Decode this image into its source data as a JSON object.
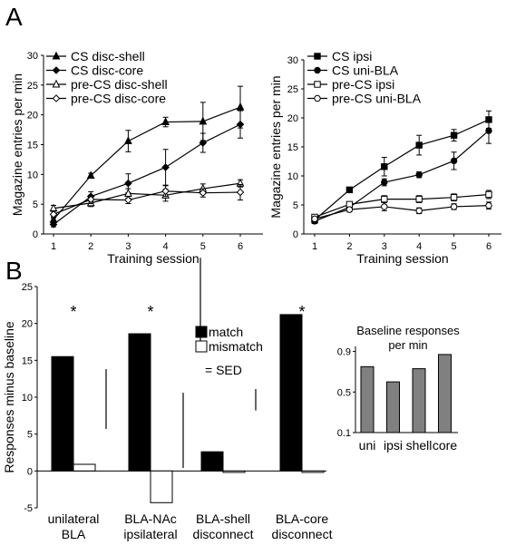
{
  "panel_labels": {
    "a": "A",
    "b": "B"
  },
  "chart_data": [
    {
      "type": "line",
      "panel": "A-left",
      "xlabel": "Training session",
      "ylabel": "Magazine entries per min",
      "x": [
        1,
        2,
        3,
        4,
        5,
        6
      ],
      "xticks": [
        "1",
        "2",
        "3",
        "4",
        "5",
        "6"
      ],
      "ylim": [
        0,
        30
      ],
      "yticks": [
        "0",
        "5",
        "10",
        "15",
        "20",
        "25",
        "30"
      ],
      "legend_position": "top-left",
      "series": [
        {
          "name": "CS disc-shell",
          "marker": "filled-triangle",
          "values": [
            2.4,
            9.8,
            15.6,
            18.8,
            18.9,
            21.3
          ],
          "errors": [
            0.5,
            0.4,
            1.8,
            0.8,
            3.2,
            3.5
          ]
        },
        {
          "name": "CS disc-core",
          "marker": "filled-diamond",
          "values": [
            1.6,
            6.3,
            8.5,
            11.2,
            15.3,
            18.4
          ],
          "errors": [
            0.4,
            0.8,
            1.6,
            3.0,
            1.6,
            2.3
          ]
        },
        {
          "name": "pre-CS disc-shell",
          "marker": "open-triangle",
          "values": [
            4.3,
            5.2,
            6.8,
            6.5,
            7.6,
            8.5
          ],
          "errors": [
            0.5,
            0.6,
            0.8,
            1.0,
            0.8,
            0.6
          ]
        },
        {
          "name": "pre-CS disc-core",
          "marker": "open-diamond",
          "values": [
            3.3,
            5.8,
            5.7,
            7.2,
            6.9,
            7.0
          ],
          "errors": [
            0.6,
            0.7,
            0.6,
            0.9,
            0.7,
            1.3
          ]
        }
      ]
    },
    {
      "type": "line",
      "panel": "A-right",
      "xlabel": "Training session",
      "ylabel": "Magazine entries per min",
      "x": [
        1,
        2,
        3,
        4,
        5,
        6
      ],
      "xticks": [
        "1",
        "2",
        "3",
        "4",
        "5",
        "6"
      ],
      "ylim": [
        0,
        30
      ],
      "yticks": [
        "0",
        "5",
        "10",
        "15",
        "20",
        "25",
        "30"
      ],
      "legend_position": "top-left",
      "series": [
        {
          "name": "CS ipsi",
          "marker": "filled-square",
          "values": [
            2.4,
            7.6,
            11.6,
            15.3,
            17.0,
            19.7
          ],
          "errors": [
            0.4,
            0.3,
            1.6,
            1.7,
            1.0,
            1.5
          ]
        },
        {
          "name": "CS uni-BLA",
          "marker": "filled-circle",
          "values": [
            2.2,
            4.6,
            8.9,
            10.2,
            12.6,
            17.8
          ],
          "errors": [
            0.4,
            0.5,
            0.6,
            0.5,
            1.5,
            2.2
          ]
        },
        {
          "name": "pre-CS ipsi",
          "marker": "open-square",
          "values": [
            2.9,
            5.1,
            6.0,
            6.0,
            6.3,
            6.8
          ],
          "errors": [
            0.3,
            0.4,
            0.6,
            0.6,
            0.6,
            0.7
          ]
        },
        {
          "name": "pre-CS uni-BLA",
          "marker": "open-circle",
          "values": [
            2.6,
            4.2,
            4.7,
            4.0,
            4.7,
            4.9
          ],
          "errors": [
            0.3,
            0.4,
            0.7,
            0.5,
            0.5,
            0.6
          ]
        }
      ]
    },
    {
      "type": "bar",
      "panel": "B-main",
      "ylabel": "Responses minus baseline",
      "categories": [
        "unilateral\nBLA",
        "BLA-NAc\nipsilateral",
        "BLA-shell\ndisconnect",
        "BLA-core\ndisconnect"
      ],
      "ylim": [
        -5,
        25
      ],
      "yticks": [
        "-5",
        "0",
        "5",
        "10",
        "15",
        "20",
        "25"
      ],
      "series": [
        {
          "name": "match",
          "color": "#000000",
          "values": [
            15.5,
            18.6,
            2.6,
            21.2
          ]
        },
        {
          "name": "mismatch",
          "color": "#ffffff",
          "values": [
            0.9,
            -4.3,
            -0.2,
            -0.2
          ]
        }
      ],
      "significance": [
        "*",
        "*",
        "",
        "*"
      ],
      "sed_label": "= SED",
      "sed_bars": [
        {
          "group": 0,
          "low": 5.7,
          "high": 13.8
        },
        {
          "group": 1,
          "low": 0.4,
          "high": 10.6
        },
        {
          "group": 2,
          "low": 8.2,
          "high": 11.1
        },
        {
          "legend": true,
          "low": 17.1,
          "high": 28.9
        }
      ]
    },
    {
      "type": "bar",
      "panel": "B-inset",
      "title": "Baseline responses per min",
      "categories": [
        "uni",
        "ipsi",
        "shell",
        "core"
      ],
      "ylim": [
        0.1,
        0.95
      ],
      "yticks": [
        "0.1",
        "0.5",
        "0.9"
      ],
      "values": [
        0.75,
        0.6,
        0.73,
        0.87
      ],
      "color": "#808080"
    }
  ]
}
